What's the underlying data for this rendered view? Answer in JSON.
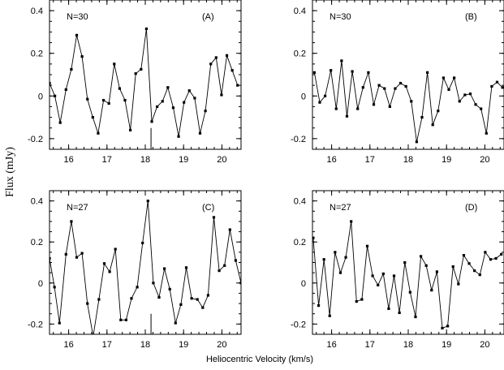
{
  "figure": {
    "xlabel": "Heliocentric Velocity (km/s)",
    "ylabel": "Flux  (mJy)"
  },
  "chart_data": [
    {
      "type": "line",
      "panel": "(A)",
      "annotation": "N=30",
      "xlim": [
        15.5,
        20.5
      ],
      "ylim": [
        -0.25,
        0.45
      ],
      "xticks": [
        16,
        17,
        18,
        19,
        20
      ],
      "yticks": [
        -0.2,
        0,
        0.2,
        0.4
      ],
      "ytick_labels": [
        "-0.2",
        "0",
        "0.2",
        "0.4"
      ],
      "marker_line_x": 18.15,
      "x": [
        15.5,
        15.64,
        15.78,
        15.93,
        16.07,
        16.21,
        16.35,
        16.49,
        16.63,
        16.77,
        16.91,
        17.05,
        17.19,
        17.33,
        17.47,
        17.61,
        17.75,
        17.89,
        18.03,
        18.17,
        18.31,
        18.45,
        18.59,
        18.73,
        18.87,
        19.01,
        19.15,
        19.29,
        19.43,
        19.57,
        19.71,
        19.85,
        19.99,
        20.13,
        20.27,
        20.41
      ],
      "y": [
        0.06,
        0.0,
        -0.125,
        0.03,
        0.125,
        0.285,
        0.185,
        -0.015,
        -0.1,
        -0.175,
        -0.02,
        -0.035,
        0.15,
        0.035,
        -0.02,
        -0.16,
        0.105,
        0.125,
        0.315,
        -0.12,
        -0.05,
        -0.025,
        0.04,
        -0.055,
        -0.19,
        -0.03,
        0.025,
        -0.01,
        -0.175,
        -0.07,
        0.15,
        0.18,
        0.005,
        0.19,
        0.12,
        0.05
      ]
    },
    {
      "type": "line",
      "panel": "(B)",
      "annotation": "N=30",
      "xlim": [
        15.5,
        20.5
      ],
      "ylim": [
        -0.25,
        0.45
      ],
      "xticks": [
        16,
        17,
        18,
        19,
        20
      ],
      "yticks": [
        -0.2,
        0,
        0.2,
        0.4
      ],
      "ytick_labels": [
        "-0.2",
        "0",
        "0.2",
        "0.4"
      ],
      "x": [
        15.55,
        15.69,
        15.83,
        15.98,
        16.12,
        16.26,
        16.4,
        16.54,
        16.68,
        16.82,
        16.96,
        17.1,
        17.24,
        17.38,
        17.52,
        17.66,
        17.8,
        17.94,
        18.08,
        18.22,
        18.36,
        18.5,
        18.64,
        18.78,
        18.92,
        19.06,
        19.2,
        19.34,
        19.48,
        19.62,
        19.76,
        19.9,
        20.04,
        20.18,
        20.32,
        20.46
      ],
      "y": [
        0.11,
        -0.03,
        0.0,
        0.12,
        -0.06,
        0.165,
        -0.095,
        0.115,
        -0.06,
        0.04,
        0.11,
        -0.04,
        0.05,
        0.035,
        -0.05,
        0.035,
        0.06,
        0.045,
        -0.025,
        -0.215,
        -0.1,
        0.11,
        -0.135,
        -0.07,
        0.085,
        0.03,
        0.085,
        -0.025,
        0.005,
        0.01,
        -0.04,
        -0.06,
        -0.175,
        0.045,
        0.065,
        0.04
      ]
    },
    {
      "type": "line",
      "panel": "(C)",
      "annotation": "N=27",
      "xlim": [
        15.5,
        20.5
      ],
      "ylim": [
        -0.25,
        0.45
      ],
      "xticks": [
        16,
        17,
        18,
        19,
        20
      ],
      "yticks": [
        -0.2,
        0,
        0.2,
        0.4
      ],
      "ytick_labels": [
        "-0.2",
        "0",
        "0.2",
        "0.4"
      ],
      "marker_line_x": 18.15,
      "x": [
        15.5,
        15.63,
        15.76,
        15.93,
        16.07,
        16.21,
        16.35,
        16.49,
        16.64,
        16.79,
        16.93,
        17.07,
        17.22,
        17.36,
        17.5,
        17.64,
        17.79,
        17.93,
        18.07,
        18.21,
        18.36,
        18.5,
        18.64,
        18.79,
        18.93,
        19.07,
        19.21,
        19.36,
        19.5,
        19.64,
        19.79,
        19.93,
        20.07,
        20.21,
        20.36,
        20.5
      ],
      "y": [
        0.12,
        -0.02,
        -0.195,
        0.14,
        0.3,
        0.125,
        0.145,
        -0.1,
        -0.26,
        -0.08,
        0.095,
        0.055,
        0.165,
        -0.18,
        -0.18,
        -0.075,
        -0.02,
        0.195,
        0.4,
        0.0,
        -0.07,
        0.07,
        -0.03,
        -0.195,
        -0.105,
        0.075,
        -0.075,
        -0.08,
        -0.12,
        -0.06,
        0.32,
        0.06,
        0.085,
        0.26,
        0.11,
        0.0
      ]
    },
    {
      "type": "line",
      "panel": "(D)",
      "annotation": "N=27",
      "xlim": [
        15.5,
        20.5
      ],
      "ylim": [
        -0.25,
        0.45
      ],
      "xticks": [
        16,
        17,
        18,
        19,
        20
      ],
      "yticks": [
        -0.2,
        0,
        0.2,
        0.4
      ],
      "ytick_labels": [
        "-0.2",
        "0",
        "0.2",
        "0.4"
      ],
      "x": [
        15.52,
        15.66,
        15.8,
        15.95,
        16.09,
        16.23,
        16.37,
        16.51,
        16.65,
        16.79,
        16.93,
        17.07,
        17.21,
        17.35,
        17.49,
        17.63,
        17.77,
        17.91,
        18.05,
        18.19,
        18.33,
        18.47,
        18.61,
        18.75,
        18.89,
        19.03,
        19.17,
        19.31,
        19.45,
        19.59,
        19.73,
        19.87,
        20.01,
        20.15,
        20.29,
        20.43
      ],
      "y": [
        0.22,
        -0.11,
        0.115,
        -0.16,
        0.15,
        0.05,
        0.125,
        0.3,
        -0.09,
        -0.08,
        0.18,
        0.035,
        -0.01,
        0.045,
        -0.125,
        0.035,
        -0.145,
        0.1,
        -0.045,
        -0.165,
        0.13,
        0.085,
        -0.035,
        0.055,
        -0.22,
        -0.21,
        0.08,
        -0.005,
        0.135,
        0.095,
        0.06,
        0.04,
        0.15,
        0.115,
        0.12,
        0.14
      ]
    }
  ]
}
